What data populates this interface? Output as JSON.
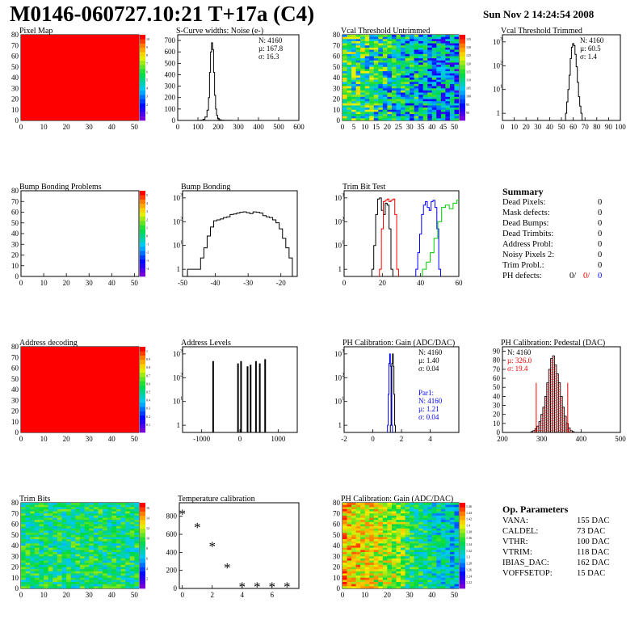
{
  "header": {
    "title": "M0146-060727.10:21 T+17a (C4)",
    "date": "Sun Nov  2 14:24:54 2008"
  },
  "summary": {
    "title": "Summary",
    "rows": [
      {
        "label": "Dead Pixels:",
        "value": "0"
      },
      {
        "label": "Mask defects:",
        "value": "0"
      },
      {
        "label": "Dead Bumps:",
        "value": "0"
      },
      {
        "label": "Dead Trimbits:",
        "value": "0"
      },
      {
        "label": "Address Probl:",
        "value": "0"
      },
      {
        "label": "Noisy Pixels 2:",
        "value": "0"
      },
      {
        "label": "Trim Probl.:",
        "value": "0"
      }
    ],
    "ph_defects": {
      "label": "PH defects:",
      "v1": "0/",
      "v2": "0/",
      "v3": "0"
    }
  },
  "op_params": {
    "title": "Op. Parameters",
    "rows": [
      {
        "label": "VANA:",
        "value": "155 DAC"
      },
      {
        "label": "CALDEL:",
        "value": "73 DAC"
      },
      {
        "label": "VTHR:",
        "value": "100 DAC"
      },
      {
        "label": "VTRIM:",
        "value": "118 DAC"
      },
      {
        "label": "IBIAS_DAC:",
        "value": "162 DAC"
      },
      {
        "label": "VOFFSETOP:",
        "value": "15 DAC"
      }
    ]
  },
  "colors": {
    "red": "#ff0000",
    "green": "#00cc00",
    "blue": "#0000ff",
    "fill_red": "#ff0000"
  },
  "chart_data": [
    {
      "id": "pixel_map",
      "type": "heatmap",
      "title": "Pixel Map",
      "xlim": [
        0,
        52
      ],
      "ylim": [
        0,
        80
      ],
      "xticks": [
        0,
        10,
        20,
        30,
        40,
        50
      ],
      "yticks": [
        0,
        10,
        20,
        30,
        40,
        50,
        60,
        70,
        80
      ],
      "pattern": "uniform",
      "base_value": 10,
      "zlim": [
        0,
        10
      ],
      "palette_ticks": [
        "1",
        "2",
        "3",
        "4",
        "5",
        "6",
        "7",
        "8",
        "9",
        "10"
      ]
    },
    {
      "id": "scurve",
      "type": "line",
      "title": "S-Curve widths: Noise (e-)",
      "xlim": [
        0,
        600
      ],
      "ylim": [
        0,
        750
      ],
      "yticks": [
        0,
        100,
        200,
        300,
        400,
        500,
        600,
        700
      ],
      "xticks": [
        0,
        100,
        200,
        300,
        400,
        500,
        600
      ],
      "stats": [
        "N: 4160",
        "µ: 167.8",
        "σ: 16.3"
      ],
      "series": [
        {
          "x": [
            100,
            120,
            130,
            140,
            150,
            155,
            160,
            165,
            170,
            175,
            180,
            185,
            190,
            195,
            200,
            210,
            220,
            240,
            300
          ],
          "y": [
            0,
            2,
            10,
            30,
            90,
            200,
            420,
            600,
            680,
            620,
            420,
            220,
            100,
            45,
            18,
            6,
            2,
            1,
            0
          ]
        }
      ]
    },
    {
      "id": "vcal_untrimmed",
      "type": "heatmap",
      "title": "Vcal Threshold Untrimmed",
      "xlim": [
        0,
        52
      ],
      "ylim": [
        0,
        80
      ],
      "xticks": [
        0,
        5,
        10,
        15,
        20,
        25,
        30,
        35,
        40,
        45,
        50
      ],
      "yticks": [
        0,
        10,
        20,
        30,
        40,
        50,
        60,
        70,
        80
      ],
      "pattern": "noise_gradient",
      "zlim": [
        80,
        140
      ],
      "palette_ticks": [
        "90",
        "95",
        "100",
        "105",
        "110",
        "115",
        "120",
        "125",
        "130",
        "135"
      ]
    },
    {
      "id": "vcal_trimmed",
      "type": "line",
      "title": "Vcal Threshold Trimmed",
      "xlim": [
        0,
        100
      ],
      "ylog": true,
      "ylim": [
        0.5,
        2000
      ],
      "xticks": [
        0,
        10,
        20,
        30,
        40,
        50,
        60,
        70,
        80,
        90,
        100
      ],
      "yticks": [
        1,
        10,
        100,
        1000
      ],
      "stats": [
        "N: 4160",
        "µ: 60.5",
        "σ: 1.4"
      ],
      "series": [
        {
          "x": [
            54,
            55,
            56,
            57,
            58,
            59,
            60,
            61,
            62,
            63,
            64,
            65,
            66,
            67
          ],
          "y": [
            1,
            3,
            10,
            40,
            200,
            600,
            850,
            700,
            300,
            90,
            20,
            5,
            2,
            1
          ]
        }
      ]
    },
    {
      "id": "bump_problems",
      "type": "heatmap",
      "title": "Bump Bonding Problems",
      "xlim": [
        0,
        52
      ],
      "ylim": [
        0,
        80
      ],
      "xticks": [
        0,
        10,
        20,
        30,
        40,
        50
      ],
      "yticks": [
        0,
        10,
        20,
        30,
        40,
        50,
        60,
        70,
        80
      ],
      "pattern": "empty",
      "zlim": [
        -5,
        5
      ],
      "palette_ticks": [
        "-4",
        "-3",
        "-2",
        "-1",
        "0",
        "1",
        "2",
        "3",
        "4",
        "5"
      ]
    },
    {
      "id": "bump_bonding",
      "type": "line",
      "title": "Bump Bonding",
      "xlim": [
        -50,
        -15
      ],
      "ylog": true,
      "ylim": [
        0.5,
        2000
      ],
      "xticks": [
        -50,
        -40,
        -30,
        -20
      ],
      "yticks": [
        1,
        10,
        100,
        1000
      ],
      "series": [
        {
          "x": [
            -48,
            -47,
            -46,
            -45,
            -44,
            -43,
            -42,
            -41,
            -40,
            -39,
            -38,
            -37,
            -36,
            -35,
            -34,
            -33,
            -32,
            -31,
            -30,
            -29,
            -28,
            -27,
            -26,
            -25,
            -24,
            -23,
            -22,
            -21,
            -20,
            -19,
            -18,
            -17
          ],
          "y": [
            1,
            1,
            1,
            1,
            3,
            8,
            25,
            60,
            110,
            120,
            130,
            150,
            160,
            200,
            210,
            230,
            250,
            260,
            240,
            220,
            260,
            250,
            230,
            180,
            160,
            150,
            120,
            90,
            50,
            20,
            8,
            3
          ]
        }
      ]
    },
    {
      "id": "trim_bit_test",
      "type": "line",
      "title": "Trim Bit Test",
      "xlim": [
        0,
        60
      ],
      "ylog": true,
      "ylim": [
        0.5,
        2000
      ],
      "xticks": [
        0,
        20,
        40,
        60
      ],
      "yticks": [
        1,
        10,
        100,
        1000
      ],
      "series": [
        {
          "color": "black",
          "x": [
            15,
            16,
            17,
            18,
            19,
            20,
            21,
            22,
            23,
            24,
            25
          ],
          "y": [
            1,
            10,
            200,
            900,
            1000,
            300,
            200,
            600,
            500,
            50,
            1
          ]
        },
        {
          "color": "red",
          "x": [
            19,
            20,
            21,
            22,
            23,
            24,
            25,
            26,
            27,
            28
          ],
          "y": [
            1,
            50,
            700,
            800,
            900,
            700,
            800,
            900,
            200,
            1
          ]
        },
        {
          "color": "blue",
          "x": [
            38,
            39,
            40,
            41,
            42,
            43,
            44,
            45,
            46,
            47,
            48,
            49,
            50
          ],
          "y": [
            1,
            5,
            30,
            200,
            500,
            700,
            400,
            300,
            700,
            800,
            400,
            50,
            1
          ]
        },
        {
          "color": "green",
          "x": [
            42,
            44,
            46,
            48,
            50,
            52,
            54,
            56,
            58,
            60
          ],
          "y": [
            1,
            2,
            5,
            20,
            100,
            400,
            500,
            350,
            600,
            800
          ]
        }
      ]
    },
    {
      "id": "address_decoding",
      "type": "heatmap",
      "title": "Address decoding",
      "xlim": [
        0,
        52
      ],
      "ylim": [
        0,
        80
      ],
      "xticks": [
        0,
        10,
        20,
        30,
        40,
        50
      ],
      "yticks": [
        0,
        10,
        20,
        30,
        40,
        50,
        60,
        70,
        80
      ],
      "pattern": "uniform",
      "base_value": 1,
      "zlim": [
        0,
        1
      ],
      "palette_ticks": [
        "0.1",
        "0.2",
        "0.3",
        "0.4",
        "0.5",
        "0.6",
        "0.7",
        "0.8",
        "0.9",
        "1"
      ]
    },
    {
      "id": "address_levels",
      "type": "bar",
      "title": "Address Levels",
      "xlim": [
        -1500,
        1500
      ],
      "ylog": true,
      "ylim": [
        0.5,
        2000
      ],
      "xticks": [
        -1000,
        0,
        1000
      ],
      "yticks": [
        1,
        10,
        100,
        1000
      ],
      "x": [
        -700,
        -50,
        30,
        200,
        280,
        420,
        520,
        660
      ],
      "values": [
        500,
        400,
        500,
        300,
        350,
        500,
        400,
        600
      ]
    },
    {
      "id": "ph_gain",
      "type": "line",
      "title": "PH Calibration: Gain (ADC/DAC)",
      "xlim": [
        -2,
        6
      ],
      "ylog": true,
      "ylim": [
        0.5,
        2000
      ],
      "xticks": [
        -2,
        0,
        2,
        4
      ],
      "yticks": [
        1,
        10,
        100,
        1000
      ],
      "stats": [
        "N: 4160",
        "µ: 1.40",
        "σ: 0.04"
      ],
      "stats2": [
        "Par1:",
        "N: 4160",
        "µ: 1.21",
        "σ: 0.04"
      ],
      "series": [
        {
          "color": "black",
          "x": [
            1.25,
            1.3,
            1.35,
            1.4,
            1.45,
            1.5,
            1.55
          ],
          "y": [
            1,
            20,
            400,
            1000,
            300,
            20,
            1
          ]
        },
        {
          "color": "blue",
          "x": [
            1.05,
            1.1,
            1.15,
            1.2,
            1.25,
            1.3,
            1.35
          ],
          "y": [
            1,
            20,
            400,
            1000,
            300,
            20,
            1
          ]
        }
      ]
    },
    {
      "id": "ph_pedestal",
      "type": "bar",
      "title": "PH Calibration: Pedestal (DAC)",
      "xlim": [
        200,
        500
      ],
      "ylim": [
        0,
        95
      ],
      "xticks": [
        200,
        300,
        400,
        500
      ],
      "yticks": [
        0,
        10,
        20,
        30,
        40,
        50,
        60,
        70,
        80,
        90
      ],
      "stats": [
        "N: 4160",
        "µ: 326.0",
        "σ: 19.4"
      ],
      "fit_lines_x": [
        286,
        366
      ],
      "x": [
        275,
        280,
        285,
        290,
        295,
        300,
        305,
        310,
        315,
        320,
        325,
        330,
        335,
        340,
        345,
        350,
        355,
        360,
        365,
        370,
        375,
        380
      ],
      "values": [
        1,
        2,
        4,
        7,
        12,
        20,
        28,
        40,
        55,
        70,
        82,
        85,
        75,
        65,
        55,
        40,
        28,
        18,
        10,
        5,
        2,
        1
      ]
    },
    {
      "id": "trim_bits",
      "type": "heatmap",
      "title": "Trim Bits",
      "xlim": [
        0,
        52
      ],
      "ylim": [
        0,
        80
      ],
      "xticks": [
        0,
        10,
        20,
        30,
        40,
        50
      ],
      "yticks": [
        0,
        10,
        20,
        30,
        40,
        50,
        60,
        70,
        80
      ],
      "pattern": "noise_trim",
      "zlim": [
        0,
        16
      ],
      "palette_ticks": [
        "2",
        "4",
        "6",
        "8",
        "10",
        "12",
        "14",
        "16"
      ]
    },
    {
      "id": "temperature",
      "type": "scatter",
      "title": "Temperature calibration",
      "xlim": [
        -0.2,
        7.8
      ],
      "ylim": [
        0,
        950
      ],
      "xticks": [
        0,
        2,
        4,
        6
      ],
      "yticks": [
        0,
        200,
        400,
        600,
        800
      ],
      "x": [
        0,
        1,
        2,
        3,
        4,
        5,
        6,
        7
      ],
      "y": [
        840,
        690,
        480,
        240,
        30,
        30,
        30,
        30
      ]
    },
    {
      "id": "ph_gain_map",
      "type": "heatmap",
      "title": "PH Calibration: Gain (ADC/DAC)",
      "xlim": [
        0,
        52
      ],
      "ylim": [
        0,
        80
      ],
      "xticks": [
        0,
        10,
        20,
        30,
        40,
        50
      ],
      "yticks": [
        0,
        10,
        20,
        30,
        40,
        50,
        60,
        70,
        80
      ],
      "pattern": "noise_gain",
      "zlim": [
        1.2,
        1.5
      ],
      "palette_ticks": [
        "1.22",
        "1.24",
        "1.26",
        "1.28",
        "1.3",
        "1.32",
        "1.34",
        "1.36",
        "1.38",
        "1.4",
        "1.42",
        "1.44",
        "1.46"
      ]
    }
  ]
}
